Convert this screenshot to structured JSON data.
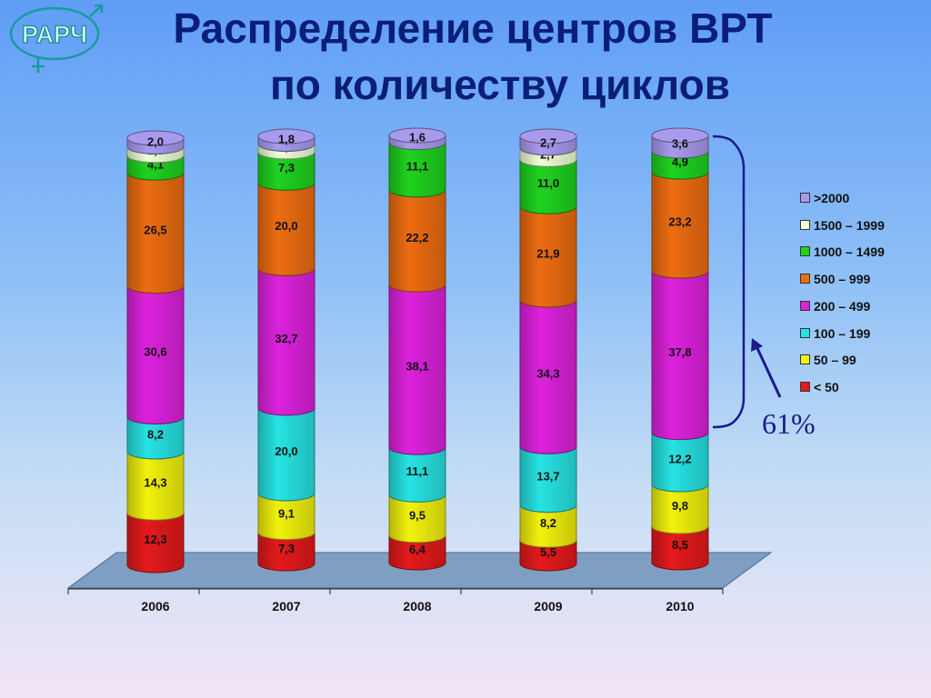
{
  "logo": {
    "text": "РАРЧ"
  },
  "title": {
    "line1": "Распределение центров ВРТ",
    "line2": "по количеству циклов"
  },
  "colors": {
    "lt50": "#e41a1c",
    "r50_99": "#f2f20d",
    "r100_199": "#27e3e3",
    "r200_499": "#dd22dd",
    "r500_999": "#ed6d11",
    "r1000_1499": "#1fd31f",
    "r1500_1999": "#efffd6",
    "gt2000": "#a89bee",
    "floor": "#7e9fc2"
  },
  "annotation": {
    "text": "61%"
  },
  "chart_data": {
    "type": "bar",
    "stacked": true,
    "categories": [
      "2006",
      "2007",
      "2008",
      "2009",
      "2010"
    ],
    "series": [
      {
        "name": "< 50",
        "color_key": "lt50",
        "values": [
          12.3,
          7.3,
          6.4,
          5.5,
          8.5
        ],
        "labels": [
          "12,3",
          "7,3",
          "6,4",
          "5,5",
          "8,5"
        ]
      },
      {
        "name": "50 – 99",
        "color_key": "r50_99",
        "values": [
          14.3,
          9.1,
          9.5,
          8.2,
          9.8
        ],
        "labels": [
          "14,3",
          "9,1",
          "9,5",
          "8,2",
          "9,8"
        ]
      },
      {
        "name": "100 – 199",
        "color_key": "r100_199",
        "values": [
          8.2,
          20.0,
          11.1,
          13.7,
          12.2
        ],
        "labels": [
          "8,2",
          "20,0",
          "11,1",
          "13,7",
          "12,2"
        ]
      },
      {
        "name": "200 – 499",
        "color_key": "r200_499",
        "values": [
          30.6,
          32.7,
          38.1,
          34.3,
          37.8
        ],
        "labels": [
          "30,6",
          "32,7",
          "38,1",
          "34,3",
          "37,8"
        ]
      },
      {
        "name": "500 – 999",
        "color_key": "r500_999",
        "values": [
          26.5,
          20.0,
          22.2,
          21.9,
          23.2
        ],
        "labels": [
          "26,5",
          "20,0",
          "22,2",
          "21,9",
          "23,2"
        ]
      },
      {
        "name": "1000 – 1499",
        "color_key": "r1000_1499",
        "values": [
          4.1,
          7.3,
          11.1,
          11.0,
          4.9
        ],
        "labels": [
          "4,1",
          "7,3",
          "11,1",
          "11,0",
          "4,9"
        ]
      },
      {
        "name": "1500 – 1999",
        "color_key": "r1500_1999",
        "values": [
          2.0,
          1.8,
          0.0,
          2.7,
          0.0
        ],
        "labels": [
          "2,0",
          "1,8",
          "",
          "2,7",
          ""
        ]
      },
      {
        "name": ">2000",
        "color_key": "gt2000",
        "values": [
          2.0,
          1.8,
          1.6,
          2.7,
          3.6
        ],
        "labels": [
          "2,0",
          "1,8",
          "1,6",
          "2,7",
          "3,6"
        ]
      }
    ],
    "ylim": [
      0,
      100
    ],
    "legend_position": "right",
    "grid": false
  }
}
